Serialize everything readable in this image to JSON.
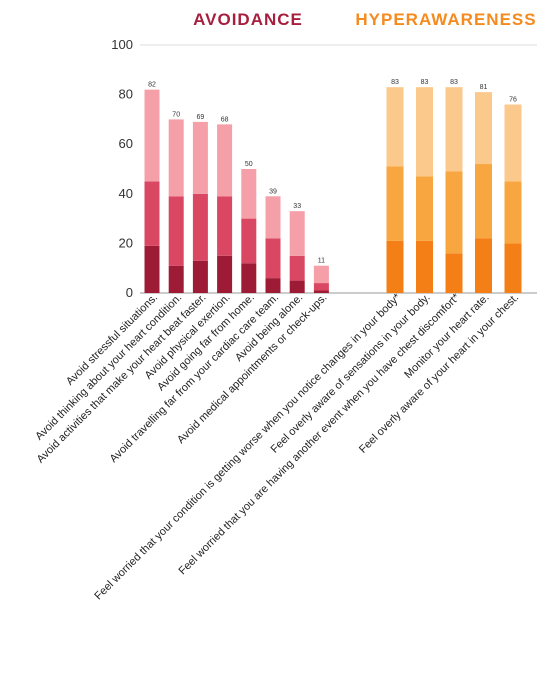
{
  "chart_data": {
    "type": "bar",
    "stacked": true,
    "ylim": [
      0,
      100
    ],
    "yticks": [
      0,
      20,
      40,
      60,
      80,
      100
    ],
    "grid": false,
    "groups": [
      {
        "title": "AVOIDANCE",
        "color": "#a61f3f",
        "segment_colors": [
          "#9e1b36",
          "#d94762",
          "#f5a0a8"
        ],
        "categories": [
          "Avoid stressful situations.",
          "Avoid thinking about your heart condition.",
          "Avoid activities that make your heart beat faster.",
          "Avoid physical exertion.",
          "Avoid going far from home.",
          "Avoid travelling far from your cardiac care team.",
          "Avoid being alone.",
          "Avoid medical appointments or check-ups."
        ],
        "series": [
          {
            "values": [
              19,
              11,
              13,
              15,
              12,
              6,
              5,
              1
            ]
          },
          {
            "values": [
              26,
              28,
              27,
              24,
              18,
              16,
              10,
              3
            ]
          },
          {
            "values": [
              37,
              31,
              29,
              29,
              20,
              17,
              18,
              7
            ]
          }
        ],
        "totals": [
          82,
          70,
          69,
          68,
          50,
          39,
          33,
          11
        ]
      },
      {
        "title": "HYPERAWARENESS",
        "color": "#f58a1f",
        "segment_colors": [
          "#f57f17",
          "#f8a640",
          "#fbc98c"
        ],
        "categories": [
          "Feel worried that your condition is getting worse when you notice changes in your body*",
          "Feel overly aware of sensations in your body.",
          "Feel worried that you are having another event when you have chest discomfort*",
          "Monitor your heart rate.",
          "Feel overly aware of your heart in your chest."
        ],
        "series": [
          {
            "values": [
              21,
              21,
              16,
              22,
              20
            ]
          },
          {
            "values": [
              30,
              26,
              33,
              30,
              25
            ]
          },
          {
            "values": [
              32,
              36,
              34,
              29,
              31
            ]
          }
        ],
        "totals": [
          83,
          83,
          83,
          81,
          76
        ]
      }
    ]
  }
}
